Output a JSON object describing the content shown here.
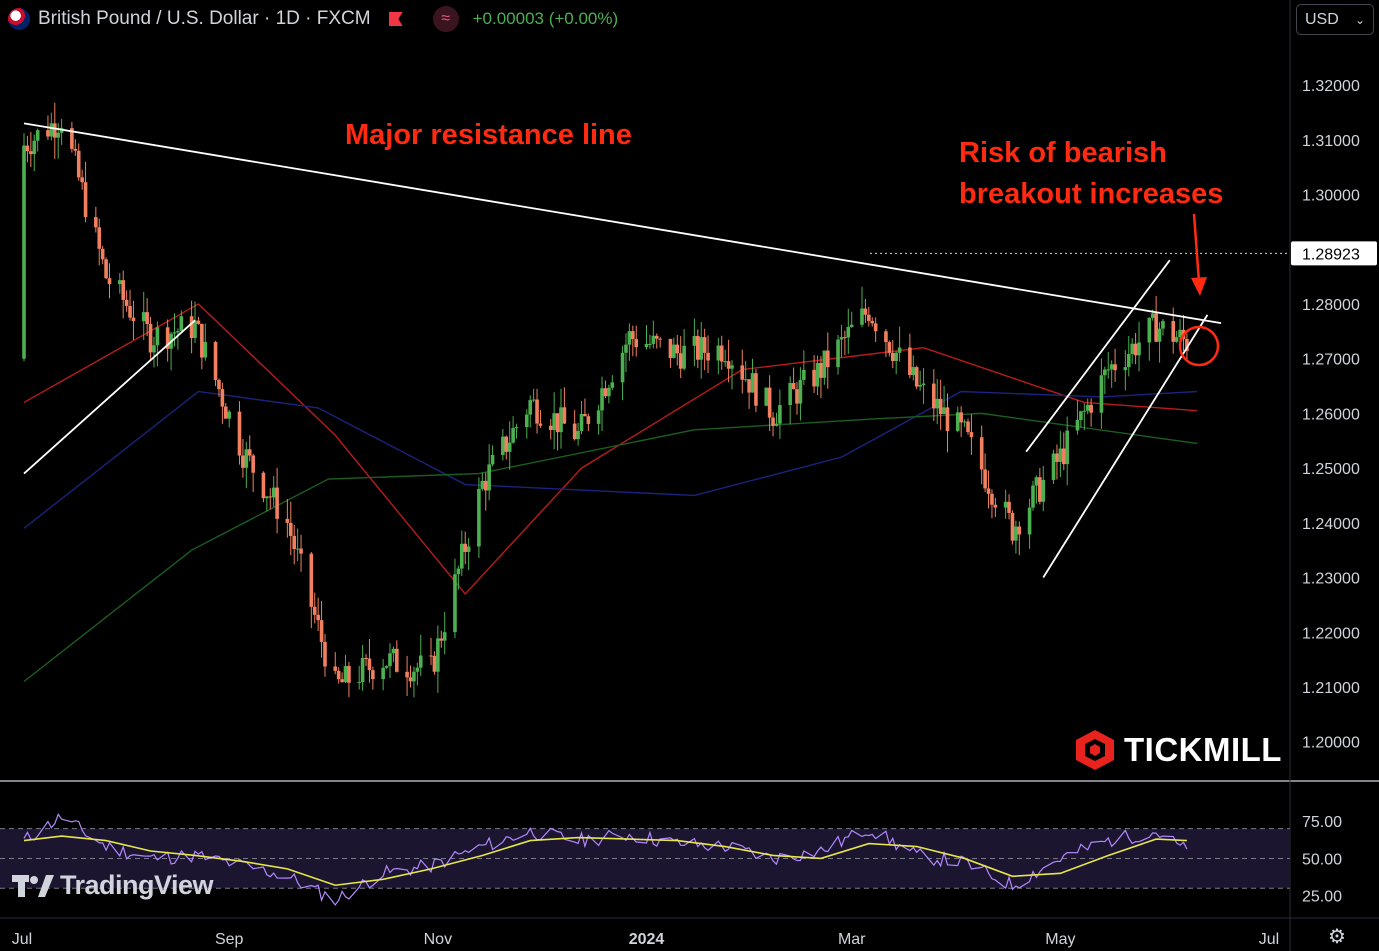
{
  "header": {
    "symbol": "British Pound / U.S. Dollar · 1D · FXCM",
    "change": "+0.00003 (+0.00%)",
    "currency": "USD"
  },
  "brands": {
    "tradingview": "TradingView",
    "tickmill": "TICKMILL"
  },
  "annotations": {
    "resistance": "Major resistance line",
    "risk_line1": "Risk of bearish",
    "risk_line2": "breakout  increases"
  },
  "colors": {
    "up": "#4caf50",
    "down": "#f08060",
    "accent": "#ff2a10",
    "rsi": "#b388ff",
    "rsi_ma": "#e6e64a"
  },
  "icons": {
    "flag": "gb-us-flag-icon",
    "market": "red-flag-icon",
    "indicator": "wave-icon",
    "settings": "gear-icon"
  },
  "chart_data": [
    {
      "type": "candlestick",
      "title": "",
      "ylim": [
        1.193,
        1.3286
      ],
      "y_ticks": [
        "1.32000",
        "1.31000",
        "1.30000",
        "1.29000",
        "1.28000",
        "1.27000",
        "1.26000",
        "1.25000",
        "1.24000",
        "1.23000",
        "1.22000",
        "1.21000",
        "1.20000"
      ],
      "x_ticks": [
        "Jul",
        "Sep",
        "Nov",
        "2024",
        "Mar",
        "May",
        "Jul"
      ],
      "price_marker": "1.28923",
      "ohlc_points": [
        [
          "2023-07-03",
          1.27,
          1.309
        ],
        [
          "2023-07-14",
          1.314,
          1.314
        ],
        [
          "2023-07-27",
          1.29,
          1.285
        ],
        [
          "2023-08-09",
          1.276,
          1.274
        ],
        [
          "2023-08-22",
          1.27,
          1.276
        ],
        [
          "2023-09-05",
          1.26,
          1.253
        ],
        [
          "2023-09-18",
          1.244,
          1.24
        ],
        [
          "2023-10-02",
          1.214,
          1.21
        ],
        [
          "2023-10-16",
          1.219,
          1.215
        ],
        [
          "2023-10-30",
          1.21,
          1.213
        ],
        [
          "2023-11-14",
          1.22,
          1.247
        ],
        [
          "2023-11-28",
          1.26,
          1.262
        ],
        [
          "2023-12-12",
          1.257,
          1.256
        ],
        [
          "2023-12-27",
          1.275,
          1.274
        ],
        [
          "2024-01-10",
          1.273,
          1.271
        ],
        [
          "2024-01-24",
          1.271,
          1.272
        ],
        [
          "2024-02-07",
          1.262,
          1.26
        ],
        [
          "2024-02-21",
          1.264,
          1.268
        ],
        [
          "2024-03-06",
          1.28,
          1.279
        ],
        [
          "2024-03-20",
          1.274,
          1.265
        ],
        [
          "2024-04-03",
          1.265,
          1.256
        ],
        [
          "2024-04-17",
          1.245,
          1.239
        ],
        [
          "2024-05-01",
          1.252,
          1.252
        ],
        [
          "2024-05-15",
          1.266,
          1.268
        ],
        [
          "2024-05-29",
          1.276,
          1.276
        ],
        [
          "2024-06-07",
          1.28,
          1.273
        ]
      ],
      "moving_averages": [
        {
          "color": "#b71c1c",
          "points": [
            [
              "2023-07-03",
              1.262
            ],
            [
              "2023-08-23",
              1.28
            ],
            [
              "2023-10-02",
              1.256
            ],
            [
              "2023-11-09",
              1.227
            ],
            [
              "2023-12-13",
              1.25
            ],
            [
              "2024-01-29",
              1.268
            ],
            [
              "2024-03-22",
              1.272
            ],
            [
              "2024-05-08",
              1.262
            ],
            [
              "2024-06-10",
              1.2605
            ]
          ]
        },
        {
          "color": "#1a237e",
          "points": [
            [
              "2023-07-03",
              1.239
            ],
            [
              "2023-08-23",
              1.264
            ],
            [
              "2023-09-27",
              1.261
            ],
            [
              "2023-11-09",
              1.247
            ],
            [
              "2024-01-15",
              1.245
            ],
            [
              "2024-02-27",
              1.252
            ],
            [
              "2024-04-02",
              1.264
            ],
            [
              "2024-05-13",
              1.263
            ],
            [
              "2024-06-10",
              1.264
            ]
          ]
        },
        {
          "color": "#1b5e20",
          "points": [
            [
              "2023-07-03",
              1.211
            ],
            [
              "2023-08-21",
              1.235
            ],
            [
              "2023-09-30",
              1.248
            ],
            [
              "2023-11-13",
              1.249
            ],
            [
              "2024-01-15",
              1.257
            ],
            [
              "2024-03-08",
              1.259
            ],
            [
              "2024-04-08",
              1.26
            ],
            [
              "2024-06-10",
              1.2545
            ]
          ]
        }
      ],
      "trendlines": [
        {
          "color": "#ffffff",
          "points": [
            [
              "2023-07-03",
              1.313
            ],
            [
              "2024-06-17",
              1.2765
            ]
          ]
        },
        {
          "color": "#ffffff",
          "points": [
            [
              "2023-07-03",
              1.249
            ],
            [
              "2023-08-22",
              1.277
            ]
          ]
        },
        {
          "color": "#ffffff",
          "points": [
            [
              "2024-04-26",
              1.23
            ],
            [
              "2024-06-13",
              1.278
            ]
          ]
        },
        {
          "color": "#ffffff",
          "points": [
            [
              "2024-04-21",
              1.253
            ],
            [
              "2024-06-02",
              1.288
            ]
          ]
        }
      ]
    },
    {
      "type": "line",
      "title": "",
      "ylim": [
        10,
        100
      ],
      "y_ticks": [
        "75.00",
        "50.00",
        "25.00"
      ],
      "bands": [
        70,
        50,
        30
      ],
      "series": [
        {
          "color": "#b388ff",
          "points": [
            [
              "2023-07-03",
              62
            ],
            [
              "2023-07-14",
              78
            ],
            [
              "2023-07-27",
              58
            ],
            [
              "2023-08-09",
              50
            ],
            [
              "2023-08-22",
              52
            ],
            [
              "2023-09-05",
              45
            ],
            [
              "2023-09-18",
              38
            ],
            [
              "2023-10-02",
              22
            ],
            [
              "2023-10-16",
              40
            ],
            [
              "2023-10-30",
              45
            ],
            [
              "2023-11-14",
              58
            ],
            [
              "2023-11-28",
              68
            ],
            [
              "2023-12-12",
              62
            ],
            [
              "2023-12-27",
              66
            ],
            [
              "2024-01-10",
              60
            ],
            [
              "2024-01-24",
              58
            ],
            [
              "2024-02-07",
              50
            ],
            [
              "2024-02-21",
              55
            ],
            [
              "2024-03-06",
              70
            ],
            [
              "2024-03-20",
              52
            ],
            [
              "2024-04-03",
              47
            ],
            [
              "2024-04-17",
              32
            ],
            [
              "2024-05-01",
              50
            ],
            [
              "2024-05-15",
              62
            ],
            [
              "2024-05-29",
              68
            ],
            [
              "2024-06-07",
              55
            ]
          ]
        },
        {
          "color": "#e6e64a",
          "points": [
            [
              "2023-07-03",
              62
            ],
            [
              "2023-07-14",
              65
            ],
            [
              "2023-07-27",
              62
            ],
            [
              "2023-08-09",
              55
            ],
            [
              "2023-08-22",
              52
            ],
            [
              "2023-09-05",
              48
            ],
            [
              "2023-09-18",
              43
            ],
            [
              "2023-10-02",
              32
            ],
            [
              "2023-10-16",
              36
            ],
            [
              "2023-10-30",
              43
            ],
            [
              "2023-11-14",
              52
            ],
            [
              "2023-11-28",
              62
            ],
            [
              "2023-12-12",
              64
            ],
            [
              "2023-12-27",
              63
            ],
            [
              "2024-01-10",
              62
            ],
            [
              "2024-01-24",
              58
            ],
            [
              "2024-02-07",
              52
            ],
            [
              "2024-02-21",
              50
            ],
            [
              "2024-03-06",
              60
            ],
            [
              "2024-03-20",
              58
            ],
            [
              "2024-04-03",
              50
            ],
            [
              "2024-04-17",
              38
            ],
            [
              "2024-05-01",
              40
            ],
            [
              "2024-05-15",
              52
            ],
            [
              "2024-05-29",
              63
            ],
            [
              "2024-06-07",
              62
            ]
          ]
        }
      ]
    }
  ]
}
